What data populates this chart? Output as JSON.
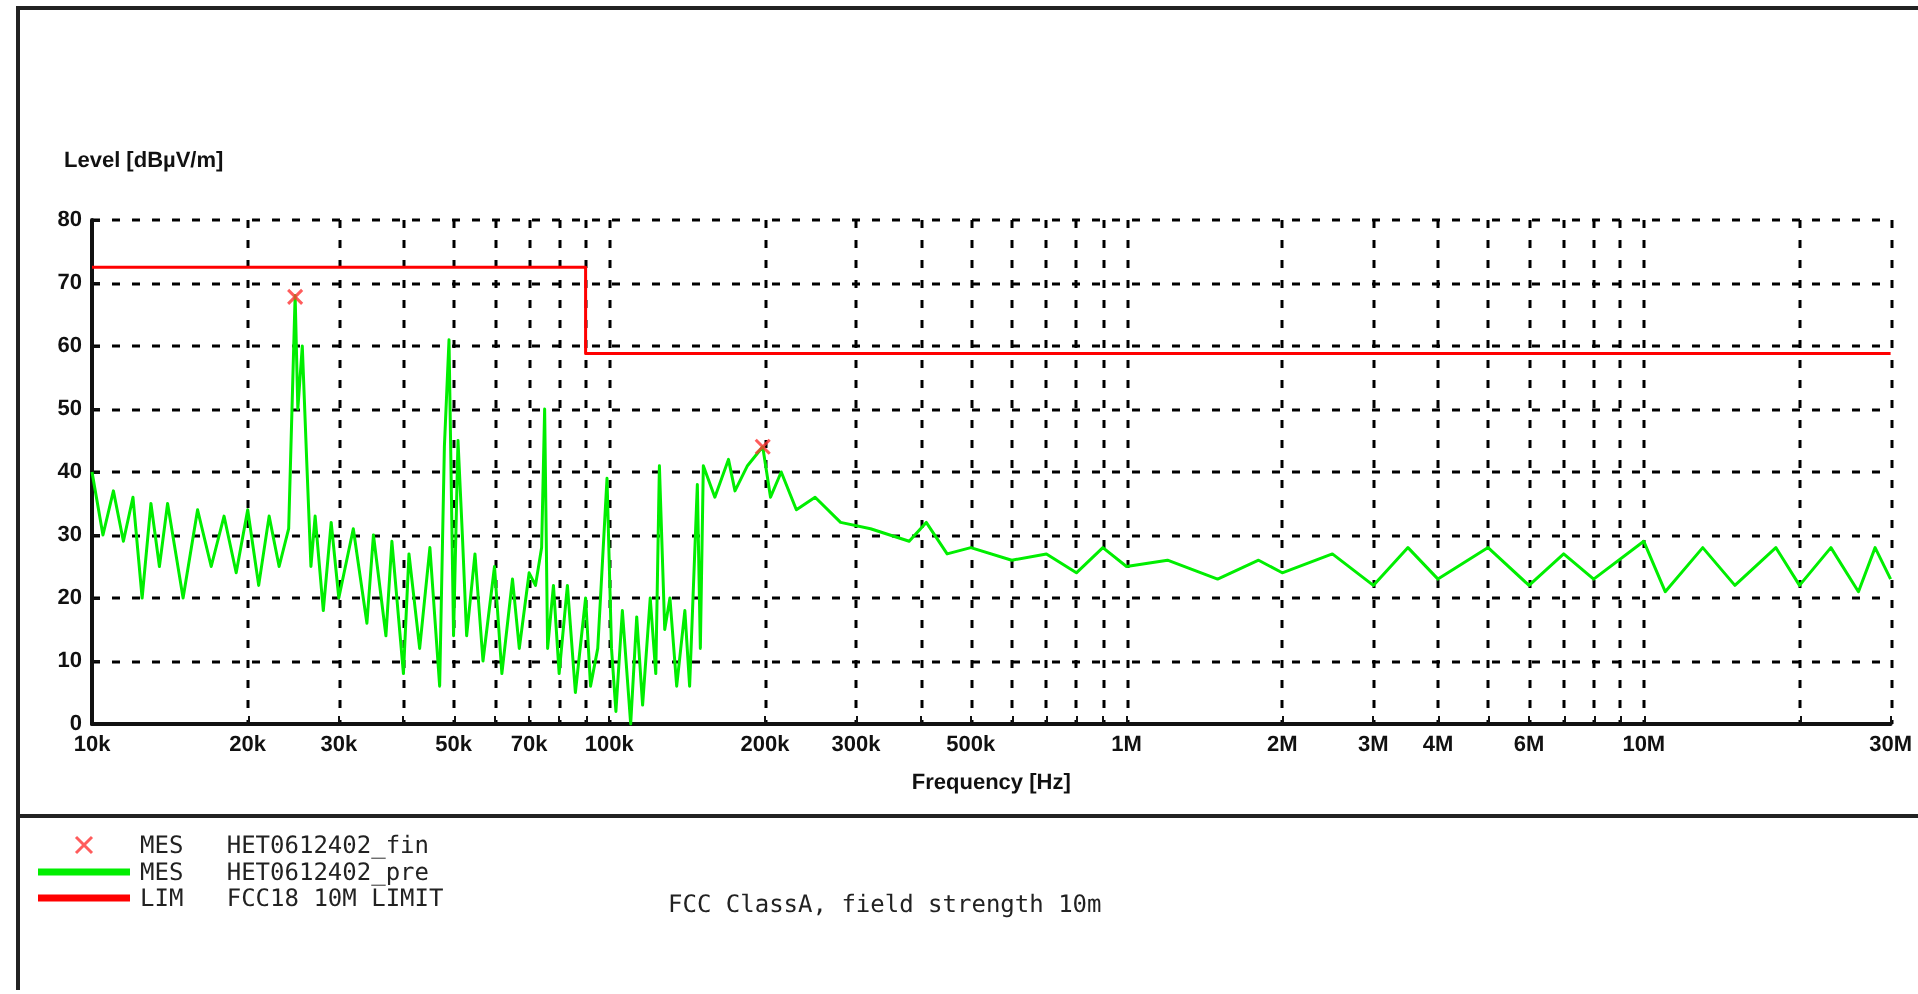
{
  "chart_data": {
    "type": "line",
    "xlabel": "Frequency [Hz]",
    "ylabel": "Level [dBµV/m]",
    "log": "x",
    "grid": true,
    "legend": "bottom left",
    "xlim": [
      10000,
      30000000
    ],
    "ylim": [
      0,
      80
    ],
    "xticks": [
      {
        "value": 10000,
        "label": "10k"
      },
      {
        "value": 20000,
        "label": "20k"
      },
      {
        "value": 30000,
        "label": "30k"
      },
      {
        "value": 40000,
        "label": null
      },
      {
        "value": 50000,
        "label": "50k"
      },
      {
        "value": 60000,
        "label": null
      },
      {
        "value": 70000,
        "label": "70k"
      },
      {
        "value": 80000,
        "label": null
      },
      {
        "value": 90000,
        "label": null
      },
      {
        "value": 100000,
        "label": "100k"
      },
      {
        "value": 200000,
        "label": "200k"
      },
      {
        "value": 300000,
        "label": "300k"
      },
      {
        "value": 400000,
        "label": null
      },
      {
        "value": 500000,
        "label": "500k"
      },
      {
        "value": 600000,
        "label": null
      },
      {
        "value": 700000,
        "label": null
      },
      {
        "value": 800000,
        "label": null
      },
      {
        "value": 900000,
        "label": null
      },
      {
        "value": 1000000,
        "label": "1M"
      },
      {
        "value": 2000000,
        "label": "2M"
      },
      {
        "value": 3000000,
        "label": "3M"
      },
      {
        "value": 4000000,
        "label": "4M"
      },
      {
        "value": 5000000,
        "label": null
      },
      {
        "value": 6000000,
        "label": "6M"
      },
      {
        "value": 7000000,
        "label": null
      },
      {
        "value": 8000000,
        "label": null
      },
      {
        "value": 9000000,
        "label": null
      },
      {
        "value": 10000000,
        "label": "10M"
      },
      {
        "value": 20000000,
        "label": null
      },
      {
        "value": 30000000,
        "label": "30M"
      }
    ],
    "yticks": [
      0,
      10,
      20,
      30,
      40,
      50,
      60,
      70,
      80
    ],
    "annotations": [
      "FCC ClassA, field strength 10m"
    ],
    "series": [
      {
        "name": "MES   HET0612402_fin",
        "type": "scatter",
        "marker": "cross",
        "color": "#ff3333",
        "x": [
          24700,
          198000
        ],
        "values": [
          67.8,
          44
        ]
      },
      {
        "name": "MES   HET0612402_pre",
        "marker": "none",
        "color": "#00ee00",
        "x": [
          10000,
          10500,
          11000,
          11500,
          12000,
          12500,
          13000,
          13500,
          14000,
          15000,
          16000,
          17000,
          18000,
          19000,
          20000,
          21000,
          22000,
          23000,
          24000,
          24700,
          25000,
          25500,
          26000,
          26500,
          27000,
          28000,
          29000,
          30000,
          32000,
          34000,
          35000,
          37000,
          38000,
          40000,
          41000,
          43000,
          45000,
          47000,
          48000,
          49000,
          50000,
          51000,
          52000,
          53000,
          55000,
          57000,
          60000,
          62000,
          65000,
          67000,
          70000,
          72000,
          74000,
          75000,
          76000,
          78000,
          80000,
          83000,
          86000,
          90000,
          92000,
          95000,
          99000,
          101000,
          103000,
          106000,
          110000,
          113000,
          116000,
          120000,
          123000,
          125000,
          128000,
          131000,
          135000,
          140000,
          143000,
          148000,
          150000,
          152000,
          160000,
          170000,
          175000,
          185000,
          198000,
          205000,
          215000,
          230000,
          250000,
          280000,
          320000,
          380000,
          410000,
          450000,
          500000,
          600000,
          700000,
          800000,
          900000,
          1000000,
          1200000,
          1500000,
          1800000,
          2000000,
          2500000,
          3000000,
          3500000,
          4000000,
          5000000,
          6000000,
          7000000,
          8000000,
          10000000,
          11000000,
          13000000,
          15000000,
          18000000,
          20000000,
          23000000,
          26000000,
          28000000,
          30000000
        ],
        "values": [
          40,
          30,
          37,
          29,
          36,
          20,
          35,
          25,
          35,
          20,
          34,
          25,
          33,
          24,
          34,
          22,
          33,
          25,
          31,
          68,
          50,
          60,
          42,
          25,
          33,
          18,
          32,
          20,
          31,
          16,
          30,
          14,
          29,
          8,
          27,
          12,
          28,
          6,
          44,
          61,
          14,
          45,
          30,
          14,
          27,
          10,
          25,
          8,
          23,
          12,
          24,
          22,
          28,
          50,
          12,
          22,
          8,
          22,
          5,
          20,
          6,
          12,
          39,
          12,
          2,
          18,
          0,
          17,
          3,
          20,
          8,
          41,
          15,
          20,
          6,
          18,
          6,
          38,
          12,
          41,
          36,
          42,
          37,
          41,
          44,
          36,
          40,
          34,
          36,
          32,
          31,
          29,
          32,
          27,
          28,
          26,
          27,
          24,
          28,
          25,
          26,
          23,
          26,
          24,
          27,
          22,
          28,
          23,
          28,
          22,
          27,
          23,
          29,
          21,
          28,
          22,
          28,
          22,
          28,
          21,
          28,
          23
        ]
      },
      {
        "name": "LIM   FCC18 10M LIMIT",
        "type": "step",
        "marker": "none",
        "color": "#ff0000",
        "x": [
          10000,
          90000,
          30000000
        ],
        "values": [
          72.5,
          58.8,
          58.8
        ]
      }
    ]
  }
}
